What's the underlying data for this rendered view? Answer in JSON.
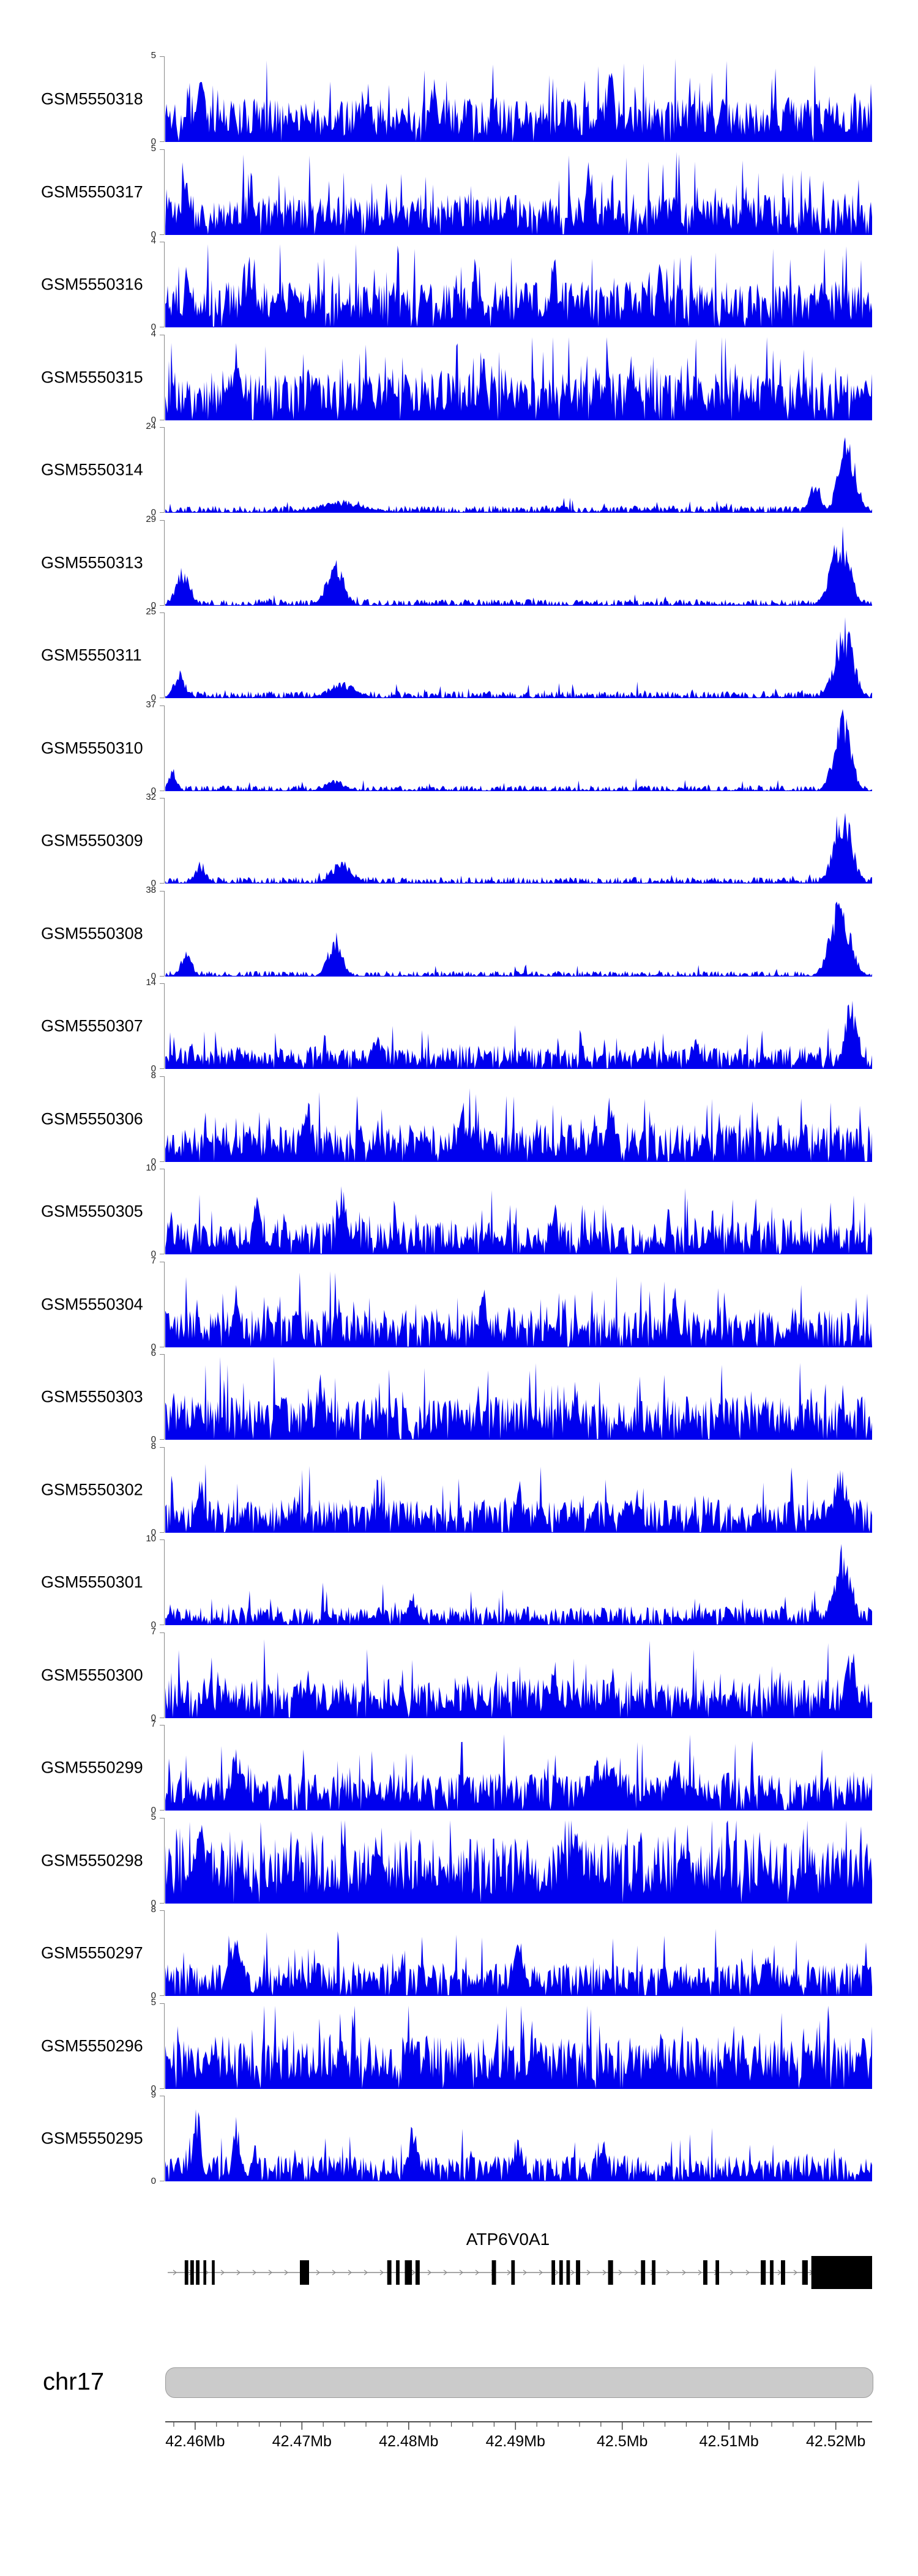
{
  "figure": {
    "background": "#FFFFFF"
  },
  "colors": {
    "signal_fill": "#0000EE",
    "gene_fill": "#000000",
    "gene_line": "#8A8A8A",
    "ideogram_fill": "#CBCBCB",
    "ideogram_border": "#9C9C9C",
    "axis_line": "#4D4D4D",
    "axis_text": "#000000",
    "yaxis_text": "#222222"
  },
  "chart_data": {
    "type": "area",
    "description": "Stacked genome-browser coverage tracks (blue filled histograms) for 23 GSM samples over chr17 ~42.457-42.523 Mb spanning the ATP6V0A1 gene, with gene model, chromosome ideogram and genome axis. Signal is dense noisy coverage; per-track pattern parameters below reproduce baseline density and the visible peaks.",
    "x_axis": {
      "chromosome": "chr17",
      "range_mb": [
        42.4572,
        42.5234
      ],
      "major_ticks_mb": [
        42.46,
        42.47,
        42.48,
        42.49,
        42.5,
        42.51,
        42.52
      ],
      "tick_labels": [
        "42.46Mb",
        "42.47Mb",
        "42.48Mb",
        "42.49Mb",
        "42.5Mb",
        "42.51Mb",
        "42.52Mb"
      ],
      "minor_tick_step_mb": 0.002
    },
    "tracks": [
      {
        "label": "GSM5550318",
        "ymin": "0",
        "ymax": "5",
        "seed": 11,
        "base": 0.3,
        "density": 0.97,
        "spike_p": 0.12,
        "spike_h": 0.65,
        "peaks": [
          {
            "pos": 0.05,
            "w": 0.006,
            "h": 0.9
          },
          {
            "pos": 0.38,
            "w": 0.005,
            "h": 0.8
          },
          {
            "pos": 0.63,
            "w": 0.005,
            "h": 1.0
          }
        ]
      },
      {
        "label": "GSM5550317",
        "ymin": "0",
        "ymax": "5",
        "seed": 12,
        "base": 0.28,
        "density": 0.96,
        "spike_p": 0.12,
        "spike_h": 0.6,
        "peaks": [
          {
            "pos": 0.03,
            "w": 0.006,
            "h": 0.8
          },
          {
            "pos": 0.6,
            "w": 0.005,
            "h": 1.0
          },
          {
            "pos": 0.82,
            "w": 0.005,
            "h": 0.75
          }
        ]
      },
      {
        "label": "GSM5550316",
        "ymin": "0",
        "ymax": "4",
        "seed": 13,
        "base": 0.32,
        "density": 0.96,
        "spike_p": 0.15,
        "spike_h": 0.6,
        "peaks": [
          {
            "pos": 0.12,
            "w": 0.006,
            "h": 0.9
          },
          {
            "pos": 0.55,
            "w": 0.005,
            "h": 0.9
          },
          {
            "pos": 0.7,
            "w": 0.005,
            "h": 0.85
          }
        ]
      },
      {
        "label": "GSM5550315",
        "ymin": "0",
        "ymax": "4",
        "seed": 14,
        "base": 0.33,
        "density": 0.97,
        "spike_p": 0.17,
        "spike_h": 0.6,
        "peaks": [
          {
            "pos": 0.1,
            "w": 0.007,
            "h": 0.95
          },
          {
            "pos": 0.45,
            "w": 0.005,
            "h": 0.8
          },
          {
            "pos": 0.66,
            "w": 0.006,
            "h": 0.85
          }
        ]
      },
      {
        "label": "GSM5550314",
        "ymin": "0",
        "ymax": "24",
        "seed": 15,
        "base": 0.05,
        "density": 0.8,
        "spike_p": 0.05,
        "spike_h": 0.1,
        "peaks": [
          {
            "pos": 0.25,
            "w": 0.035,
            "h": 0.15
          },
          {
            "pos": 0.92,
            "w": 0.008,
            "h": 0.4
          },
          {
            "pos": 0.965,
            "w": 0.012,
            "h": 1.0
          }
        ]
      },
      {
        "label": "GSM5550313",
        "ymin": "0",
        "ymax": "29",
        "seed": 16,
        "base": 0.045,
        "density": 0.75,
        "spike_p": 0.04,
        "spike_h": 0.1,
        "peaks": [
          {
            "pos": 0.025,
            "w": 0.01,
            "h": 0.5
          },
          {
            "pos": 0.24,
            "w": 0.012,
            "h": 0.62
          },
          {
            "pos": 0.955,
            "w": 0.013,
            "h": 1.0
          }
        ]
      },
      {
        "label": "GSM5550311",
        "ymin": "0",
        "ymax": "25",
        "seed": 17,
        "base": 0.05,
        "density": 0.75,
        "spike_p": 0.05,
        "spike_h": 0.12,
        "peaks": [
          {
            "pos": 0.02,
            "w": 0.008,
            "h": 0.35
          },
          {
            "pos": 0.25,
            "w": 0.02,
            "h": 0.2
          },
          {
            "pos": 0.96,
            "w": 0.013,
            "h": 1.0
          }
        ]
      },
      {
        "label": "GSM5550310",
        "ymin": "0",
        "ymax": "37",
        "seed": 18,
        "base": 0.04,
        "density": 0.7,
        "spike_p": 0.04,
        "spike_h": 0.1,
        "peaks": [
          {
            "pos": 0.01,
            "w": 0.006,
            "h": 0.3
          },
          {
            "pos": 0.24,
            "w": 0.015,
            "h": 0.14
          },
          {
            "pos": 0.958,
            "w": 0.012,
            "h": 1.0
          }
        ]
      },
      {
        "label": "GSM5550309",
        "ymin": "0",
        "ymax": "32",
        "seed": 19,
        "base": 0.045,
        "density": 0.72,
        "spike_p": 0.05,
        "spike_h": 0.1,
        "peaks": [
          {
            "pos": 0.05,
            "w": 0.008,
            "h": 0.28
          },
          {
            "pos": 0.25,
            "w": 0.015,
            "h": 0.3
          },
          {
            "pos": 0.958,
            "w": 0.013,
            "h": 1.0
          }
        ]
      },
      {
        "label": "GSM5550308",
        "ymin": "0",
        "ymax": "38",
        "seed": 20,
        "base": 0.04,
        "density": 0.7,
        "spike_p": 0.04,
        "spike_h": 0.1,
        "peaks": [
          {
            "pos": 0.03,
            "w": 0.008,
            "h": 0.32
          },
          {
            "pos": 0.24,
            "w": 0.01,
            "h": 0.55
          },
          {
            "pos": 0.955,
            "w": 0.014,
            "h": 1.0
          }
        ]
      },
      {
        "label": "GSM5550307",
        "ymin": "0",
        "ymax": "14",
        "seed": 21,
        "base": 0.16,
        "density": 0.92,
        "spike_p": 0.1,
        "spike_h": 0.35,
        "peaks": [
          {
            "pos": 0.3,
            "w": 0.008,
            "h": 0.5
          },
          {
            "pos": 0.75,
            "w": 0.006,
            "h": 0.45
          },
          {
            "pos": 0.97,
            "w": 0.01,
            "h": 0.85
          }
        ]
      },
      {
        "label": "GSM5550306",
        "ymin": "0",
        "ymax": "8",
        "seed": 22,
        "base": 0.26,
        "density": 0.94,
        "spike_p": 0.12,
        "spike_h": 0.5,
        "peaks": [
          {
            "pos": 0.2,
            "w": 0.006,
            "h": 0.95
          },
          {
            "pos": 0.42,
            "w": 0.005,
            "h": 0.8
          },
          {
            "pos": 0.63,
            "w": 0.006,
            "h": 0.9
          }
        ]
      },
      {
        "label": "GSM5550305",
        "ymin": "0",
        "ymax": "10",
        "seed": 23,
        "base": 0.23,
        "density": 0.93,
        "spike_p": 0.1,
        "spike_h": 0.45,
        "peaks": [
          {
            "pos": 0.13,
            "w": 0.006,
            "h": 0.8
          },
          {
            "pos": 0.25,
            "w": 0.006,
            "h": 0.95
          },
          {
            "pos": 0.55,
            "w": 0.005,
            "h": 0.7
          }
        ]
      },
      {
        "label": "GSM5550304",
        "ymin": "0",
        "ymax": "7",
        "seed": 24,
        "base": 0.26,
        "density": 0.94,
        "spike_p": 0.12,
        "spike_h": 0.5,
        "peaks": [
          {
            "pos": 0.1,
            "w": 0.006,
            "h": 0.8
          },
          {
            "pos": 0.45,
            "w": 0.005,
            "h": 1.0
          },
          {
            "pos": 0.72,
            "w": 0.005,
            "h": 0.75
          }
        ]
      },
      {
        "label": "GSM5550303",
        "ymin": "0",
        "ymax": "6",
        "seed": 25,
        "base": 0.3,
        "density": 0.95,
        "spike_p": 0.12,
        "spike_h": 0.5,
        "peaks": [
          {
            "pos": 0.22,
            "w": 0.006,
            "h": 0.9
          },
          {
            "pos": 0.58,
            "w": 0.005,
            "h": 0.8
          }
        ]
      },
      {
        "label": "GSM5550302",
        "ymin": "0",
        "ymax": "8",
        "seed": 26,
        "base": 0.23,
        "density": 0.93,
        "spike_p": 0.1,
        "spike_h": 0.5,
        "peaks": [
          {
            "pos": 0.05,
            "w": 0.006,
            "h": 0.7
          },
          {
            "pos": 0.5,
            "w": 0.005,
            "h": 0.7
          },
          {
            "pos": 0.955,
            "w": 0.01,
            "h": 0.9
          }
        ]
      },
      {
        "label": "GSM5550301",
        "ymin": "0",
        "ymax": "10",
        "seed": 27,
        "base": 0.13,
        "density": 0.9,
        "spike_p": 0.08,
        "spike_h": 0.3,
        "peaks": [
          {
            "pos": 0.35,
            "w": 0.006,
            "h": 0.45
          },
          {
            "pos": 0.958,
            "w": 0.013,
            "h": 1.0
          }
        ]
      },
      {
        "label": "GSM5550300",
        "ymin": "0",
        "ymax": "7",
        "seed": 28,
        "base": 0.28,
        "density": 0.95,
        "spike_p": 0.1,
        "spike_h": 0.5,
        "peaks": [
          {
            "pos": 0.55,
            "w": 0.005,
            "h": 0.8
          },
          {
            "pos": 0.97,
            "w": 0.008,
            "h": 0.9
          }
        ]
      },
      {
        "label": "GSM5550299",
        "ymin": "0",
        "ymax": "7",
        "seed": 29,
        "base": 0.26,
        "density": 0.94,
        "spike_p": 0.12,
        "spike_h": 0.5,
        "peaks": [
          {
            "pos": 0.1,
            "w": 0.008,
            "h": 0.8
          },
          {
            "pos": 0.62,
            "w": 0.02,
            "h": 0.7
          },
          {
            "pos": 0.72,
            "w": 0.01,
            "h": 0.65
          }
        ]
      },
      {
        "label": "GSM5550298",
        "ymin": "0",
        "ymax": "5",
        "seed": 30,
        "base": 0.45,
        "density": 0.99,
        "spike_p": 0.2,
        "spike_h": 0.5,
        "peaks": [
          {
            "pos": 0.05,
            "w": 0.01,
            "h": 0.9
          },
          {
            "pos": 0.3,
            "w": 0.01,
            "h": 0.85
          }
        ]
      },
      {
        "label": "GSM5550297",
        "ymin": "0",
        "ymax": "8",
        "seed": 31,
        "base": 0.23,
        "density": 0.93,
        "spike_p": 0.11,
        "spike_h": 0.45,
        "peaks": [
          {
            "pos": 0.1,
            "w": 0.01,
            "h": 0.8
          },
          {
            "pos": 0.5,
            "w": 0.008,
            "h": 0.7
          },
          {
            "pos": 0.85,
            "w": 0.006,
            "h": 0.6
          }
        ]
      },
      {
        "label": "GSM5550296",
        "ymin": "0",
        "ymax": "5",
        "seed": 32,
        "base": 0.36,
        "density": 0.97,
        "spike_p": 0.15,
        "spike_h": 0.5,
        "peaks": [
          {
            "pos": 0.25,
            "w": 0.006,
            "h": 0.85
          },
          {
            "pos": 0.7,
            "w": 0.006,
            "h": 0.8
          }
        ]
      },
      {
        "label": "GSM5550295",
        "ymin": "0",
        "ymax": "9",
        "seed": 33,
        "base": 0.18,
        "density": 0.92,
        "spike_p": 0.1,
        "spike_h": 0.38,
        "peaks": [
          {
            "pos": 0.045,
            "w": 0.005,
            "h": 1.0
          },
          {
            "pos": 0.1,
            "w": 0.005,
            "h": 0.85
          },
          {
            "pos": 0.35,
            "w": 0.007,
            "h": 0.7
          },
          {
            "pos": 0.5,
            "w": 0.006,
            "h": 0.55
          },
          {
            "pos": 0.62,
            "w": 0.006,
            "h": 0.5
          }
        ]
      }
    ],
    "gene_track": {
      "label": "ATP6V0A1",
      "strand": "right",
      "exons": [
        {
          "p": 0.03,
          "w": 0.005
        },
        {
          "p": 0.038,
          "w": 0.005
        },
        {
          "p": 0.046,
          "w": 0.005
        },
        {
          "p": 0.056,
          "w": 0.004
        },
        {
          "p": 0.068,
          "w": 0.004
        },
        {
          "p": 0.197,
          "w": 0.013
        },
        {
          "p": 0.317,
          "w": 0.006
        },
        {
          "p": 0.329,
          "w": 0.005
        },
        {
          "p": 0.344,
          "w": 0.01
        },
        {
          "p": 0.357,
          "w": 0.006
        },
        {
          "p": 0.465,
          "w": 0.006
        },
        {
          "p": 0.492,
          "w": 0.005
        },
        {
          "p": 0.549,
          "w": 0.005
        },
        {
          "p": 0.56,
          "w": 0.005
        },
        {
          "p": 0.57,
          "w": 0.005
        },
        {
          "p": 0.584,
          "w": 0.006
        },
        {
          "p": 0.63,
          "w": 0.007
        },
        {
          "p": 0.676,
          "w": 0.006
        },
        {
          "p": 0.691,
          "w": 0.005
        },
        {
          "p": 0.764,
          "w": 0.006
        },
        {
          "p": 0.781,
          "w": 0.005
        },
        {
          "p": 0.846,
          "w": 0.007
        },
        {
          "p": 0.858,
          "w": 0.005
        },
        {
          "p": 0.874,
          "w": 0.006
        },
        {
          "p": 0.905,
          "w": 0.008
        },
        {
          "p": 0.957,
          "w": 0.086,
          "big": true
        }
      ]
    },
    "ideogram": {
      "label": "chr17"
    }
  }
}
